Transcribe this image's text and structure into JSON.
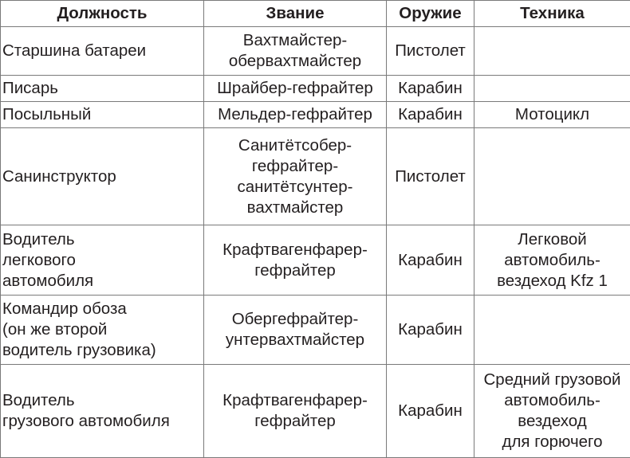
{
  "headers": [
    "Должность",
    "Звание",
    "Оружие",
    "Техника"
  ],
  "rows": [
    [
      "Старшина батареи",
      "Вахтмайстер-\nобервахтмайстер",
      "Пистолет",
      ""
    ],
    [
      "Писарь",
      "Шрайбер-гефрайтер",
      "Карабин",
      ""
    ],
    [
      "Посыльный",
      "Мельдер-гефрайтер",
      "Карабин",
      "Мотоцикл"
    ],
    [
      "Санинструктор",
      "Санитётсобер-\nгефрайтер-\nсанитётсунтер-\nвахтмайстер",
      "Пистолет",
      ""
    ],
    [
      "Водитель\nлегкового\nавтомобиля",
      "Крафтвагенфарер-\nгефрайтер",
      "Карабин",
      "Легковой\nавтомобиль-\nвездеход Kfz 1"
    ],
    [
      "Командир обоза\n(он же второй\nводитель грузовика)",
      "Обергефрайтер-\nунтервахтмайстер",
      "Карабин",
      ""
    ],
    [
      "Водитель\nгрузового автомобиля",
      "Крафтвагенфарер-\nгефрайтер",
      "Карабин",
      "Средний грузовой\nавтомобиль-\nвездеход\nдля горючего"
    ]
  ]
}
